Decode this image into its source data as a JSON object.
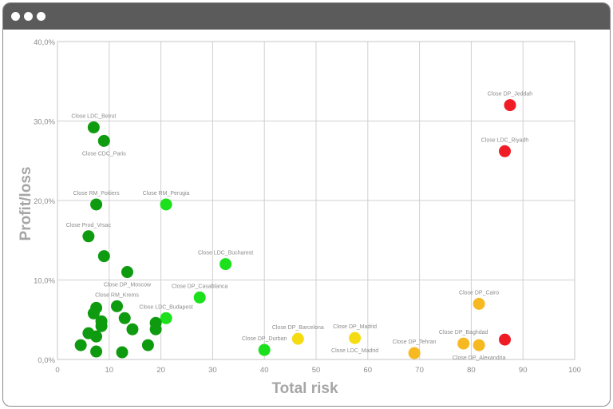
{
  "window": {
    "colors": {
      "titlebar": "#5b5b5b",
      "dots": "#ffffff",
      "border": "#8a8a8a"
    }
  },
  "chart_data": {
    "type": "scatter",
    "xlabel": "Total risk",
    "ylabel": "Profit/loss",
    "xlim": [
      0,
      100
    ],
    "ylim": [
      0,
      40
    ],
    "xticks": [
      0,
      10,
      20,
      30,
      40,
      50,
      60,
      70,
      80,
      90,
      100
    ],
    "xtick_labels": [
      "0",
      "10",
      "20",
      "30",
      "40",
      "50",
      "60",
      "70",
      "80",
      "90",
      "100"
    ],
    "yticks": [
      0,
      10,
      20,
      30,
      40
    ],
    "ytick_labels": [
      "0,0%",
      "10,0%",
      "20,0%",
      "30,0%",
      "40,0%"
    ],
    "grid": true,
    "colors": {
      "dark_green": "#0f9b0f",
      "light_green": "#1ce01c",
      "yellow": "#f5dc12",
      "orange": "#f6b921",
      "red": "#ef1c25"
    },
    "points": [
      {
        "label": "Close DP_Jeddah",
        "x": 87.5,
        "y": 32.0,
        "color": "red",
        "label_pos": "above"
      },
      {
        "label": "Close LDC_Riyadh",
        "x": 86.5,
        "y": 26.2,
        "color": "red",
        "label_pos": "above"
      },
      {
        "label": "",
        "x": 86.5,
        "y": 2.5,
        "color": "red",
        "label_pos": "none"
      },
      {
        "label": "Close DP_Cairo",
        "x": 81.5,
        "y": 7.0,
        "color": "orange",
        "label_pos": "above"
      },
      {
        "label": "Close DP_Baghdad",
        "x": 78.5,
        "y": 2.0,
        "color": "orange",
        "label_pos": "above"
      },
      {
        "label": "Close DP_Alexandria",
        "x": 81.5,
        "y": 1.8,
        "color": "orange",
        "label_pos": "below"
      },
      {
        "label": "Close DP_Tehran",
        "x": 69.0,
        "y": 0.8,
        "color": "orange",
        "label_pos": "above"
      },
      {
        "label": "Close DP_Madrid",
        "x": 57.5,
        "y": 2.7,
        "color": "yellow",
        "label_pos": "above"
      },
      {
        "label": "Close LDC_Madrid",
        "x": 57.5,
        "y": 2.7,
        "color": "yellow",
        "label_pos": "below"
      },
      {
        "label": "Close DP_Barcelona",
        "x": 46.5,
        "y": 2.6,
        "color": "yellow",
        "label_pos": "above"
      },
      {
        "label": "Close DP_Durban",
        "x": 40.0,
        "y": 1.2,
        "color": "light_green",
        "label_pos": "above"
      },
      {
        "label": "Close LDC_Bucharest",
        "x": 32.5,
        "y": 12.0,
        "color": "light_green",
        "label_pos": "above"
      },
      {
        "label": "Close DP_Casablanca",
        "x": 27.5,
        "y": 7.8,
        "color": "light_green",
        "label_pos": "above"
      },
      {
        "label": "Close LDC_Budapest",
        "x": 21.0,
        "y": 5.2,
        "color": "light_green",
        "label_pos": "above"
      },
      {
        "label": "Close RM_Perugia",
        "x": 21.0,
        "y": 19.5,
        "color": "light_green",
        "label_pos": "above"
      },
      {
        "label": "Close LDC_Beirut",
        "x": 7.0,
        "y": 29.2,
        "color": "dark_green",
        "label_pos": "above"
      },
      {
        "label": "Close CDC_Paris",
        "x": 9.0,
        "y": 27.5,
        "color": "dark_green",
        "label_pos": "below"
      },
      {
        "label": "Close RM_Poitiers",
        "x": 7.5,
        "y": 19.5,
        "color": "dark_green",
        "label_pos": "above"
      },
      {
        "label": "Close Prod_Vrsac",
        "x": 6.0,
        "y": 15.5,
        "color": "dark_green",
        "label_pos": "above"
      },
      {
        "label": "",
        "x": 9.0,
        "y": 13.0,
        "color": "dark_green",
        "label_pos": "none"
      },
      {
        "label": "Close DP_Moscow",
        "x": 13.5,
        "y": 11.0,
        "color": "dark_green",
        "label_pos": "below"
      },
      {
        "label": "Close RM_Krems",
        "x": 11.5,
        "y": 6.7,
        "color": "dark_green",
        "label_pos": "above"
      },
      {
        "label": "",
        "x": 7.5,
        "y": 6.5,
        "color": "dark_green",
        "label_pos": "none"
      },
      {
        "label": "",
        "x": 7.0,
        "y": 5.8,
        "color": "dark_green",
        "label_pos": "none"
      },
      {
        "label": "",
        "x": 8.5,
        "y": 4.8,
        "color": "dark_green",
        "label_pos": "none"
      },
      {
        "label": "",
        "x": 8.5,
        "y": 4.2,
        "color": "dark_green",
        "label_pos": "none"
      },
      {
        "label": "",
        "x": 13.0,
        "y": 5.2,
        "color": "dark_green",
        "label_pos": "none"
      },
      {
        "label": "",
        "x": 14.5,
        "y": 3.8,
        "color": "dark_green",
        "label_pos": "none"
      },
      {
        "label": "",
        "x": 19.0,
        "y": 4.6,
        "color": "dark_green",
        "label_pos": "none"
      },
      {
        "label": "",
        "x": 19.0,
        "y": 3.8,
        "color": "dark_green",
        "label_pos": "none"
      },
      {
        "label": "",
        "x": 17.5,
        "y": 1.8,
        "color": "dark_green",
        "label_pos": "none"
      },
      {
        "label": "",
        "x": 6.0,
        "y": 3.3,
        "color": "dark_green",
        "label_pos": "none"
      },
      {
        "label": "",
        "x": 7.5,
        "y": 2.9,
        "color": "dark_green",
        "label_pos": "none"
      },
      {
        "label": "",
        "x": 4.5,
        "y": 1.8,
        "color": "dark_green",
        "label_pos": "none"
      },
      {
        "label": "",
        "x": 7.5,
        "y": 1.0,
        "color": "dark_green",
        "label_pos": "none"
      },
      {
        "label": "",
        "x": 12.5,
        "y": 0.9,
        "color": "dark_green",
        "label_pos": "none"
      }
    ]
  }
}
